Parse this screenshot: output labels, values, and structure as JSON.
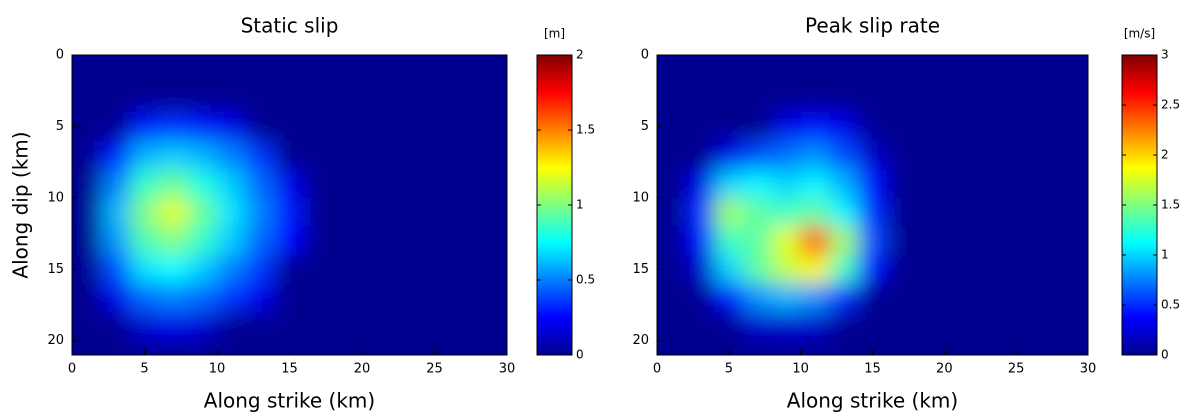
{
  "chart_data": [
    {
      "type": "heatmap",
      "title": "Static slip",
      "xlabel": "Along strike (km)",
      "ylabel": "Along dip (km)",
      "colormap": "jet",
      "y_inverted": true,
      "xlim": [
        0,
        30
      ],
      "ylim": [
        0,
        21
      ],
      "xticks": [
        0,
        5,
        10,
        15,
        20,
        25,
        30
      ],
      "yticks": [
        0,
        5,
        10,
        15,
        20
      ],
      "colorbar": {
        "label": "[m]",
        "lim": [
          0,
          2
        ],
        "ticks": [
          0,
          0.5,
          1,
          1.5,
          2
        ]
      },
      "x": [
        1,
        3,
        5,
        7,
        9,
        11,
        13,
        15,
        17,
        19,
        21,
        23,
        25,
        27,
        29
      ],
      "y": [
        1,
        3,
        5,
        7,
        9,
        11,
        13,
        15,
        17,
        19,
        21
      ],
      "z": [
        [
          0,
          0,
          0,
          0,
          0,
          0,
          0,
          0,
          0,
          0,
          0,
          0,
          0,
          0,
          0
        ],
        [
          0,
          0,
          0,
          0,
          0,
          0,
          0,
          0,
          0,
          0,
          0,
          0,
          0,
          0,
          0
        ],
        [
          0,
          0,
          0.3,
          0.35,
          0.3,
          0.2,
          0,
          0,
          0,
          0,
          0,
          0,
          0,
          0,
          0
        ],
        [
          0,
          0.3,
          0.6,
          0.65,
          0.6,
          0.5,
          0.35,
          0,
          0,
          0,
          0,
          0,
          0,
          0,
          0
        ],
        [
          0,
          0.5,
          0.85,
          0.95,
          0.8,
          0.65,
          0.45,
          0.2,
          0,
          0,
          0,
          0,
          0,
          0,
          0
        ],
        [
          0,
          0.6,
          1,
          1.2,
          0.95,
          0.7,
          0.5,
          0.3,
          0,
          0,
          0,
          0,
          0,
          0,
          0
        ],
        [
          0,
          0.55,
          0.9,
          1,
          0.85,
          0.65,
          0.45,
          0.25,
          0,
          0,
          0,
          0,
          0,
          0,
          0
        ],
        [
          0,
          0.4,
          0.7,
          0.75,
          0.65,
          0.5,
          0.35,
          0,
          0,
          0,
          0,
          0,
          0,
          0,
          0
        ],
        [
          0,
          0.2,
          0.45,
          0.5,
          0.45,
          0.35,
          0.2,
          0,
          0,
          0,
          0,
          0,
          0,
          0,
          0
        ],
        [
          0,
          0,
          0.15,
          0.2,
          0.15,
          0,
          0,
          0,
          0,
          0,
          0,
          0,
          0,
          0,
          0
        ],
        [
          0,
          0,
          0,
          0,
          0,
          0,
          0,
          0,
          0,
          0,
          0,
          0,
          0,
          0,
          0
        ]
      ]
    },
    {
      "type": "heatmap",
      "title": "Peak slip rate",
      "xlabel": "Along strike (km)",
      "colormap": "jet",
      "y_inverted": true,
      "xlim": [
        0,
        30
      ],
      "ylim": [
        0,
        21
      ],
      "xticks": [
        0,
        5,
        10,
        15,
        20,
        25,
        30
      ],
      "yticks": [
        0,
        5,
        10,
        15,
        20
      ],
      "colorbar": {
        "label": "[m/s]",
        "lim": [
          0,
          3
        ],
        "ticks": [
          0,
          0.5,
          1,
          1.5,
          2,
          2.5,
          3
        ]
      },
      "x": [
        1,
        3,
        5,
        7,
        9,
        11,
        13,
        15,
        17,
        19,
        21,
        23,
        25,
        27,
        29
      ],
      "y": [
        1,
        3,
        5,
        7,
        9,
        11,
        13,
        15,
        17,
        19,
        21
      ],
      "z": [
        [
          0,
          0,
          0,
          0,
          0,
          0,
          0,
          0,
          0,
          0,
          0,
          0,
          0,
          0,
          0
        ],
        [
          0,
          0,
          0,
          0,
          0,
          0,
          0,
          0,
          0,
          0,
          0,
          0,
          0,
          0,
          0
        ],
        [
          0,
          0,
          0,
          0,
          0.3,
          0.4,
          0.3,
          0,
          0,
          0,
          0,
          0,
          0,
          0,
          0
        ],
        [
          0,
          0,
          0.3,
          0.6,
          0.7,
          0.8,
          0.6,
          0.2,
          0,
          0,
          0,
          0,
          0,
          0,
          0
        ],
        [
          0,
          0.3,
          1,
          1.1,
          1,
          1.1,
          0.9,
          0.4,
          0,
          0,
          0,
          0,
          0,
          0,
          0
        ],
        [
          0,
          0.5,
          1.6,
          1.4,
          1.3,
          1.4,
          1.1,
          0.5,
          0,
          0,
          0,
          0,
          0,
          0,
          0
        ],
        [
          0,
          0.4,
          1.3,
          1.4,
          1.8,
          2.4,
          1.6,
          0.6,
          0,
          0,
          0,
          0,
          0,
          0,
          0
        ],
        [
          0,
          0.2,
          1,
          1.4,
          1.7,
          1.9,
          1.3,
          0.4,
          0,
          0,
          0,
          0,
          0,
          0,
          0
        ],
        [
          0,
          0,
          0.4,
          0.8,
          0.9,
          0.8,
          0.5,
          0,
          0,
          0,
          0,
          0,
          0,
          0,
          0
        ],
        [
          0,
          0,
          0,
          0.2,
          0.2,
          0.2,
          0,
          0,
          0,
          0,
          0,
          0,
          0,
          0,
          0
        ],
        [
          0,
          0,
          0,
          0,
          0,
          0,
          0,
          0,
          0,
          0,
          0,
          0,
          0,
          0,
          0
        ]
      ]
    }
  ]
}
